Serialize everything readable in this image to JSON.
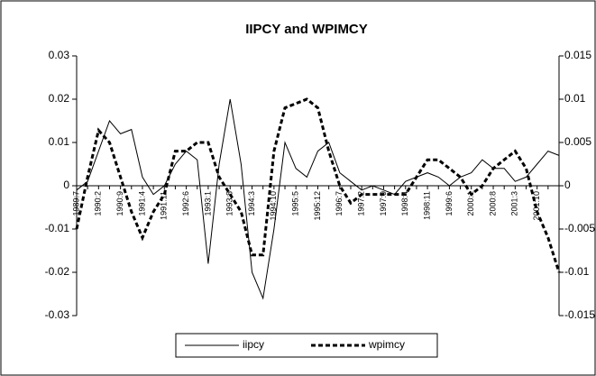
{
  "chart_data": {
    "type": "line",
    "title": "IIPCY and WPIMCY",
    "categories": [
      "1989:7",
      null,
      "1990:2",
      null,
      "1990:9",
      null,
      "1991:4",
      null,
      "1991:11",
      null,
      "1992:6",
      null,
      "1993:1",
      null,
      "1993:8",
      null,
      "1994:3",
      null,
      "1994:10",
      null,
      "1995:5",
      null,
      "1995:12",
      null,
      "1996:7",
      null,
      "1997:2",
      null,
      "1997:9",
      null,
      "1998:4",
      null,
      "1998:11",
      null,
      "1999:6",
      null,
      "2000:1",
      null,
      "2000:8",
      null,
      "2001:3",
      null,
      "2001:10",
      null,
      null
    ],
    "series": [
      {
        "name": "iipcy",
        "color": "#000000",
        "style": "solid",
        "values": [
          -0.001,
          0.001,
          0.008,
          0.015,
          0.012,
          0.013,
          0.002,
          -0.002,
          0.0,
          0.005,
          0.008,
          0.006,
          -0.018,
          0.005,
          0.02,
          0.005,
          -0.02,
          -0.026,
          -0.01,
          0.01,
          0.004,
          0.002,
          0.008,
          0.01,
          0.003,
          0.001,
          -0.001,
          0.0,
          -0.001,
          -0.002,
          0.001,
          0.002,
          0.003,
          0.002,
          0.0,
          0.002,
          0.003,
          0.006,
          0.004,
          0.004,
          0.001,
          0.002,
          0.005,
          0.008,
          0.007
        ]
      },
      {
        "name": "wpimcy",
        "color": "#000000",
        "style": "dashed",
        "axis": "y2",
        "values": [
          -0.005,
          0.001,
          0.0064,
          0.005,
          0.001,
          -0.003,
          -0.006,
          -0.003,
          -0.001,
          0.004,
          0.004,
          0.005,
          0.005,
          0.001,
          -0.001,
          -0.003,
          -0.008,
          -0.008,
          0.004,
          0.009,
          0.0095,
          0.01,
          0.009,
          0.004,
          0.0,
          -0.002,
          -0.001,
          -0.001,
          -0.001,
          -0.001,
          -0.001,
          0.001,
          0.003,
          0.003,
          0.002,
          0.001,
          -0.001,
          0.0,
          0.002,
          0.003,
          0.004,
          0.002,
          -0.003,
          -0.006,
          -0.01
        ]
      }
    ],
    "ylim": [
      -0.03,
      0.03
    ],
    "yticks": [
      0.03,
      0.02,
      0.01,
      0,
      -0.01,
      -0.02,
      -0.03
    ],
    "y2lim": [
      -0.015,
      0.015
    ],
    "y2ticks": [
      0.015,
      0.01,
      0.005,
      0,
      -0.005,
      -0.01,
      -0.015
    ],
    "grid": false,
    "legend": "bottom"
  }
}
